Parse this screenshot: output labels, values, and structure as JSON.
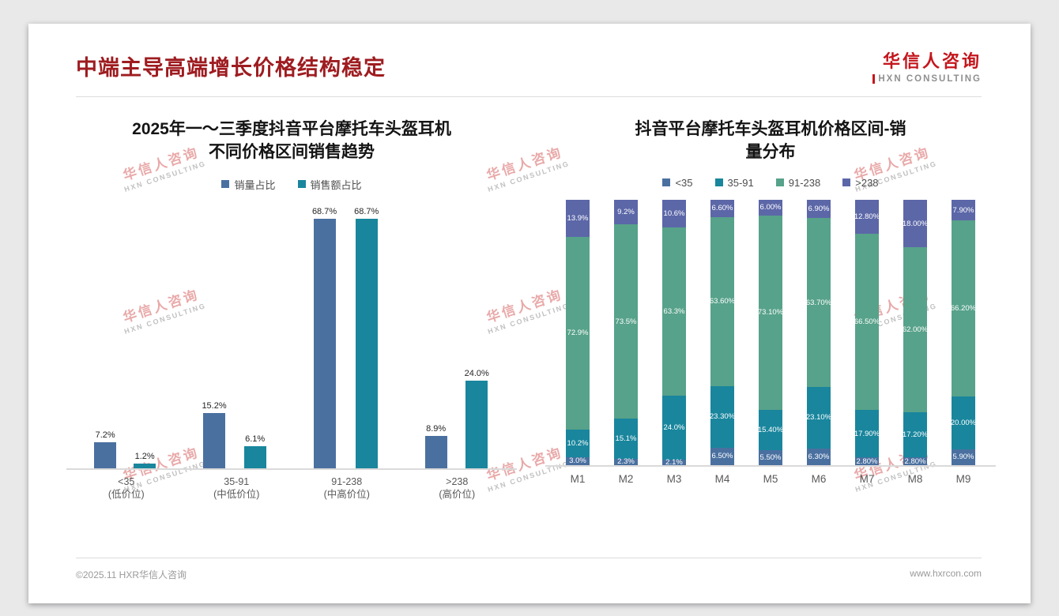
{
  "page": {
    "title": "中端主导高端增长价格结构稳定",
    "logo": {
      "name": "华信人咨询",
      "sub": "HXN CONSULTING"
    },
    "watermark": {
      "line1": "华信人咨询",
      "line2": "HXN CONSULTING"
    },
    "footer": {
      "left": "©2025.11 HXR华信人咨询",
      "right": "www.hxrcon.com"
    }
  },
  "colors": {
    "title_red": "#9E1C20",
    "brand_red": "#C4161C",
    "blue": "#4A70A0",
    "teal": "#19869D",
    "green": "#57A28A",
    "purple": "#5C67A8",
    "axis_gray": "#DADADA"
  },
  "chart_data": [
    {
      "type": "bar",
      "variant": "grouped",
      "title_lines": [
        "2025年一～三季度抖音平台摩托车头盔耳机",
        "不同价格区间销售趋势"
      ],
      "categories": [
        "<35",
        "35-91",
        "91-238",
        ">238"
      ],
      "category_sublabels": [
        "(低价位)",
        "(中低价位)",
        "(中高价位)",
        "(高价位)"
      ],
      "ylim": [
        0,
        75
      ],
      "grid": false,
      "legend_position": "top",
      "value_suffix": "%",
      "series": [
        {
          "name": "销量占比",
          "color": "#4A70A0",
          "values": [
            7.2,
            15.2,
            68.7,
            8.9
          ],
          "labels": [
            "7.2%",
            "15.2%",
            "68.7%",
            "8.9%"
          ]
        },
        {
          "name": "销售额占比",
          "color": "#19869D",
          "values": [
            1.2,
            6.1,
            68.7,
            24.0
          ],
          "labels": [
            "1.2%",
            "6.1%",
            "68.7%",
            "24.0%"
          ]
        }
      ]
    },
    {
      "type": "bar",
      "variant": "stacked-100",
      "title_lines": [
        "抖音平台摩托车头盔耳机价格区间-销",
        "量分布"
      ],
      "categories": [
        "M1",
        "M2",
        "M3",
        "M4",
        "M5",
        "M6",
        "M7",
        "M8",
        "M9"
      ],
      "ylim": [
        0,
        100
      ],
      "grid": false,
      "legend_position": "top",
      "value_suffix": "%",
      "series": [
        {
          "name": "<35",
          "color": "#4A70A0",
          "values": [
            3.0,
            2.3,
            2.1,
            6.5,
            5.5,
            6.3,
            2.8,
            2.8,
            5.9
          ],
          "labels": [
            "3.0%",
            "2.3%",
            "2.1%",
            "6.50%",
            "5.50%",
            "6.30%",
            "2.80%",
            "2.80%",
            "5.90%"
          ]
        },
        {
          "name": "35-91",
          "color": "#19869D",
          "values": [
            10.2,
            15.1,
            24.0,
            23.3,
            15.4,
            23.1,
            17.9,
            17.2,
            20.0
          ],
          "labels": [
            "10.2%",
            "15.1%",
            "24.0%",
            "23.30%",
            "15.40%",
            "23.10%",
            "17.90%",
            "17.20%",
            "20.00%"
          ]
        },
        {
          "name": "91-238",
          "color": "#57A28A",
          "values": [
            72.9,
            73.5,
            63.3,
            63.6,
            73.1,
            63.7,
            66.5,
            62.0,
            66.2
          ],
          "labels": [
            "72.9%",
            "73.5%",
            "63.3%",
            "63.60%",
            "73.10%",
            "63.70%",
            "66.50%",
            "62.00%",
            "66.20%"
          ]
        },
        {
          "name": ">238",
          "color": "#5C67A8",
          "values": [
            13.9,
            9.2,
            10.6,
            6.6,
            6.0,
            6.9,
            12.8,
            18.0,
            7.9
          ],
          "labels": [
            "13.9%",
            "9.2%",
            "10.6%",
            "6.60%",
            "6.00%",
            "6.90%",
            "12.80%",
            "18.00%",
            "7.90%"
          ]
        }
      ]
    }
  ]
}
